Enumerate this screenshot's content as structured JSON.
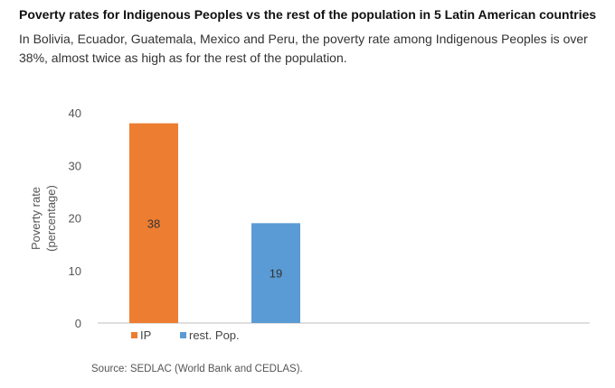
{
  "title": "Poverty rates for Indigenous Peoples vs the rest of the population in 5 Latin American countries",
  "subtitle": "In Bolivia, Ecuador, Guatemala, Mexico and Peru, the poverty rate among Indigenous Peoples is over 38%, almost twice as high as for the rest of the population.",
  "source": "Source: SEDLAC (World Bank and CEDLAS).",
  "chart_data": {
    "type": "bar",
    "series": [
      {
        "name": "IP",
        "values": [
          38
        ],
        "color": "#ed7d31"
      },
      {
        "name": "rest. Pop.",
        "values": [
          19
        ],
        "color": "#5b9bd5"
      }
    ],
    "ylabel_lines": [
      "Poverty  rate",
      "(percentage)"
    ],
    "xlabel": "",
    "ylim": [
      0,
      40
    ],
    "yticks": [
      0,
      10,
      20,
      30,
      40
    ],
    "data_labels": true,
    "grid": false,
    "legend": "bottom-left"
  }
}
